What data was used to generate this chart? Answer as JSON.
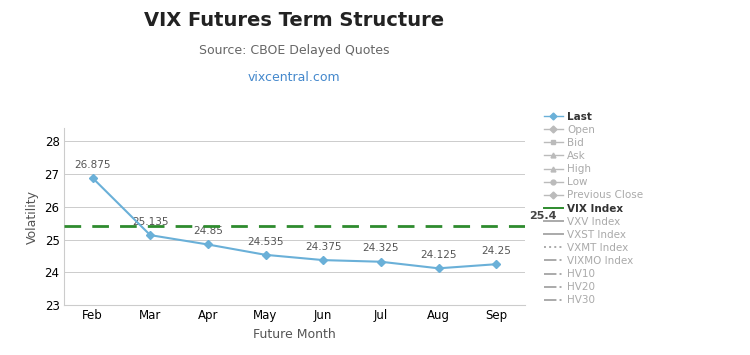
{
  "title": "VIX Futures Term Structure",
  "subtitle": "Source: CBOE Delayed Quotes",
  "url_text": "vixcentral.com",
  "url_color": "#4488cc",
  "xlabel": "Future Month",
  "ylabel": "Volatility",
  "months": [
    "Feb",
    "Mar",
    "Apr",
    "May",
    "Jun",
    "Jul",
    "Aug",
    "Sep"
  ],
  "last_values": [
    26.875,
    25.135,
    24.85,
    24.535,
    24.375,
    24.325,
    24.125,
    24.25
  ],
  "vix_index": 25.4,
  "ylim": [
    23,
    28.4
  ],
  "yticks": [
    23,
    24,
    25,
    26,
    27,
    28
  ],
  "line_color": "#6ab0d8",
  "marker_color": "#6ab0d8",
  "vix_line_color": "#2e8b2e",
  "background_color": "#ffffff",
  "grid_color": "#cccccc",
  "legend_items": [
    {
      "label": "Last",
      "color": "#6ab0d8",
      "style": "solid",
      "marker": "D",
      "bold": true
    },
    {
      "label": "Open",
      "color": "#bbbbbb",
      "style": "solid",
      "marker": "D",
      "bold": false
    },
    {
      "label": "Bid",
      "color": "#bbbbbb",
      "style": "solid",
      "marker": "s",
      "bold": false
    },
    {
      "label": "Ask",
      "color": "#bbbbbb",
      "style": "solid",
      "marker": "^",
      "bold": false
    },
    {
      "label": "High",
      "color": "#bbbbbb",
      "style": "solid",
      "marker": "^",
      "bold": false
    },
    {
      "label": "Low",
      "color": "#bbbbbb",
      "style": "solid",
      "marker": "o",
      "bold": false
    },
    {
      "label": "Previous Close",
      "color": "#bbbbbb",
      "style": "solid",
      "marker": "D",
      "bold": false
    },
    {
      "label": "VIX Index",
      "color": "#2e8b2e",
      "style": "solid",
      "marker": null,
      "bold": true
    },
    {
      "label": "VXV Index",
      "color": "#aaaaaa",
      "style": "solid",
      "marker": null,
      "bold": false
    },
    {
      "label": "VXST Index",
      "color": "#aaaaaa",
      "style": "solid",
      "marker": null,
      "bold": false
    },
    {
      "label": "VXMT Index",
      "color": "#aaaaaa",
      "style": "dotted",
      "marker": null,
      "bold": false
    },
    {
      "label": "VIXMO Index",
      "color": "#aaaaaa",
      "style": "dashdot",
      "marker": null,
      "bold": false
    },
    {
      "label": "HV10",
      "color": "#aaaaaa",
      "style": "dashdot",
      "marker": null,
      "bold": false
    },
    {
      "label": "HV20",
      "color": "#aaaaaa",
      "style": "dashdot",
      "marker": null,
      "bold": false
    },
    {
      "label": "HV30",
      "color": "#aaaaaa",
      "style": "dashdot",
      "marker": null,
      "bold": false
    }
  ],
  "data_label_fontsize": 7.5,
  "title_fontsize": 14,
  "subtitle_fontsize": 9,
  "url_fontsize": 9,
  "axis_label_fontsize": 9,
  "tick_fontsize": 8.5,
  "legend_fontsize": 7.5
}
